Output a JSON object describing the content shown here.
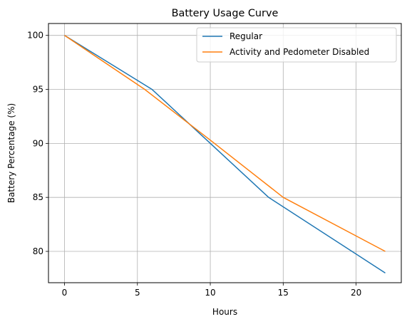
{
  "chart_data": {
    "type": "line",
    "title": "Battery Usage Curve",
    "xlabel": "Hours",
    "ylabel": "Battery Percentage (%)",
    "xlim": [
      -1.1,
      23.1
    ],
    "ylim": [
      77.1,
      101.1
    ],
    "xticks": [
      0,
      5,
      10,
      15,
      20
    ],
    "yticks": [
      80,
      85,
      90,
      95,
      100
    ],
    "grid": true,
    "legend_position": "upper right",
    "series": [
      {
        "name": "Regular",
        "color": "#1f77b4",
        "x": [
          0,
          6,
          10,
          14,
          22
        ],
        "y": [
          100,
          95,
          90,
          85,
          78
        ]
      },
      {
        "name": "Activity and Pedometer Disabled",
        "color": "#ff7f0e",
        "x": [
          0,
          5.5,
          10,
          15,
          22
        ],
        "y": [
          100,
          95,
          90.3,
          85,
          80
        ]
      }
    ]
  }
}
